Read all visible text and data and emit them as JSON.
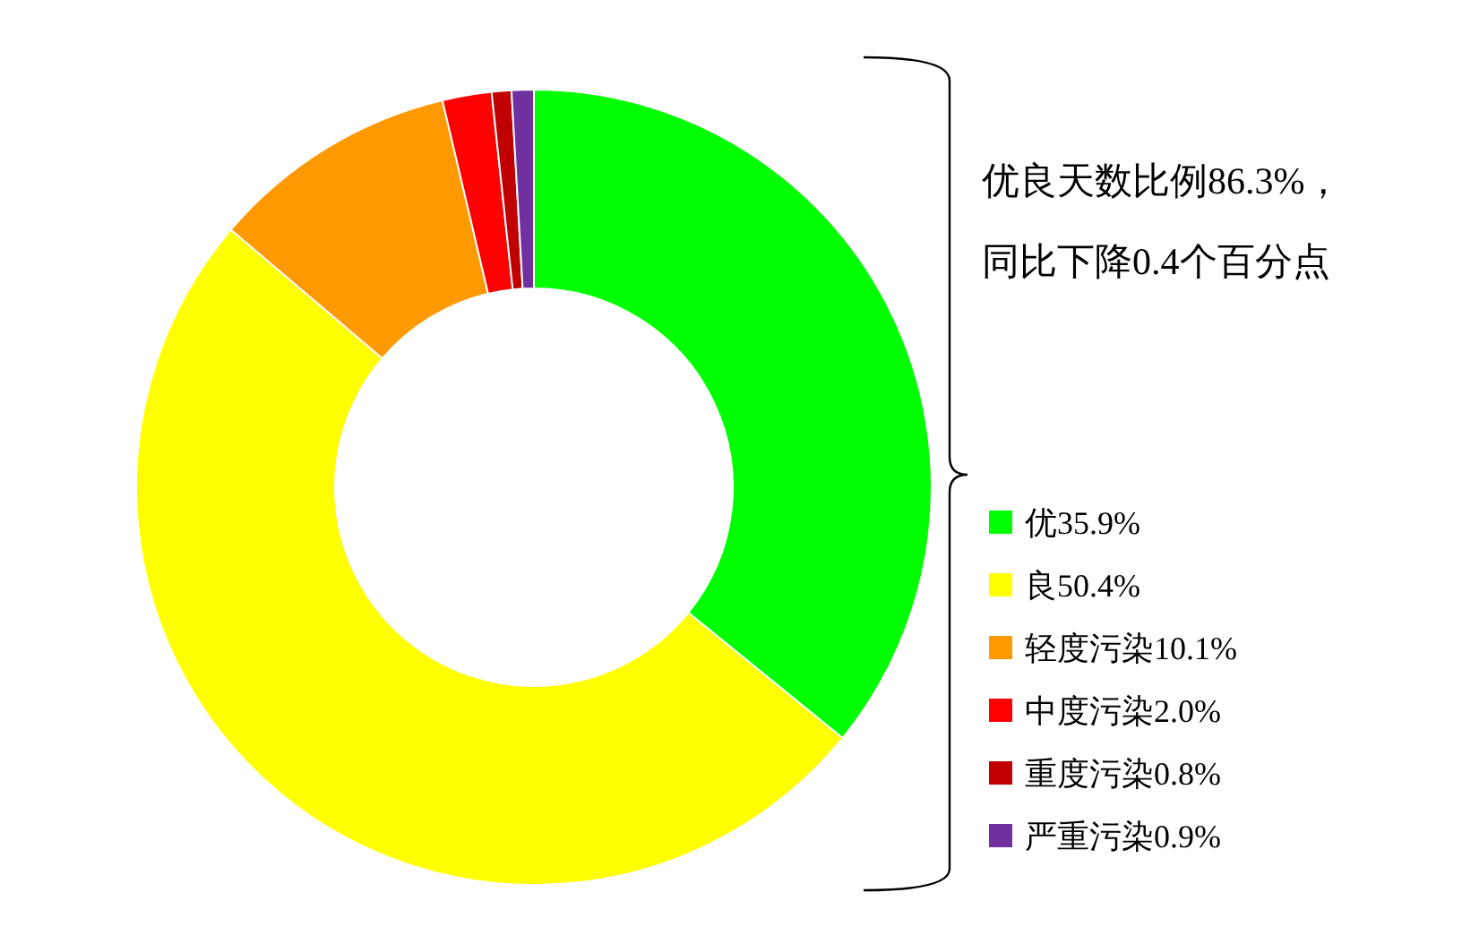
{
  "chart_data": {
    "type": "donut",
    "categories": [
      "优35.9%",
      "良50.4%",
      "轻度污染10.1%",
      "中度污染2.0%",
      "重度污染0.8%",
      "严重污染0.9%"
    ],
    "values": [
      35.9,
      50.4,
      10.1,
      2.0,
      0.8,
      0.9
    ],
    "colors": [
      "#00ff00",
      "#ffff00",
      "#ff9900",
      "#ff0000",
      "#c00000",
      "#7030a0"
    ],
    "legend": "right",
    "annotations": [
      "优良天数比例86.3%，",
      "同比下降0.4个百分点"
    ]
  }
}
